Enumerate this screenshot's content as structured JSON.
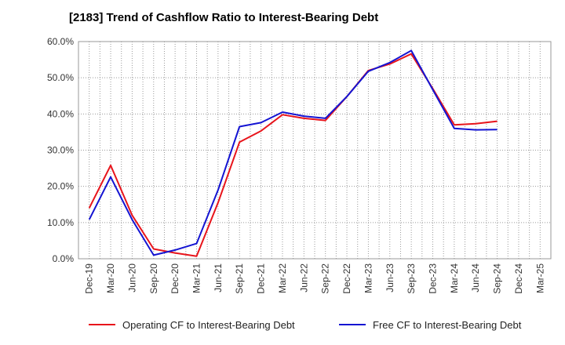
{
  "chart_data": {
    "type": "line",
    "title": "[2183]  Trend of Cashflow Ratio to Interest-Bearing Debt",
    "xlabel": "",
    "ylabel": "",
    "ylim": [
      0,
      60
    ],
    "yticks": [
      "0.0%",
      "10.0%",
      "20.0%",
      "30.0%",
      "40.0%",
      "50.0%",
      "60.0%"
    ],
    "categories": [
      "Dec-19",
      "Mar-20",
      "Jun-20",
      "Sep-20",
      "Dec-20",
      "Mar-21",
      "Jun-21",
      "Sep-21",
      "Dec-21",
      "Mar-22",
      "Jun-22",
      "Sep-22",
      "Dec-22",
      "Mar-23",
      "Jun-23",
      "Sep-23",
      "Dec-23",
      "Mar-24",
      "Jun-24",
      "Sep-24",
      "Dec-24",
      "Mar-25"
    ],
    "grid": true,
    "legend_position": "bottom",
    "series": [
      {
        "name": "Operating CF to Interest-Bearing Debt",
        "color": "#e8141b",
        "values": [
          14.0,
          25.8,
          12.0,
          2.7,
          1.6,
          0.7,
          15.5,
          32.2,
          35.3,
          39.8,
          38.8,
          38.2,
          44.8,
          52.0,
          53.8,
          56.6,
          47.0,
          37.0,
          37.3,
          38.0,
          null,
          null
        ]
      },
      {
        "name": "Free CF to Interest-Bearing Debt",
        "color": "#1414d2",
        "values": [
          10.8,
          22.6,
          10.8,
          1.0,
          2.4,
          4.2,
          19.0,
          36.5,
          37.6,
          40.5,
          39.4,
          38.8,
          44.8,
          51.8,
          54.2,
          57.5,
          46.7,
          36.0,
          35.6,
          35.7,
          null,
          null
        ]
      }
    ]
  }
}
